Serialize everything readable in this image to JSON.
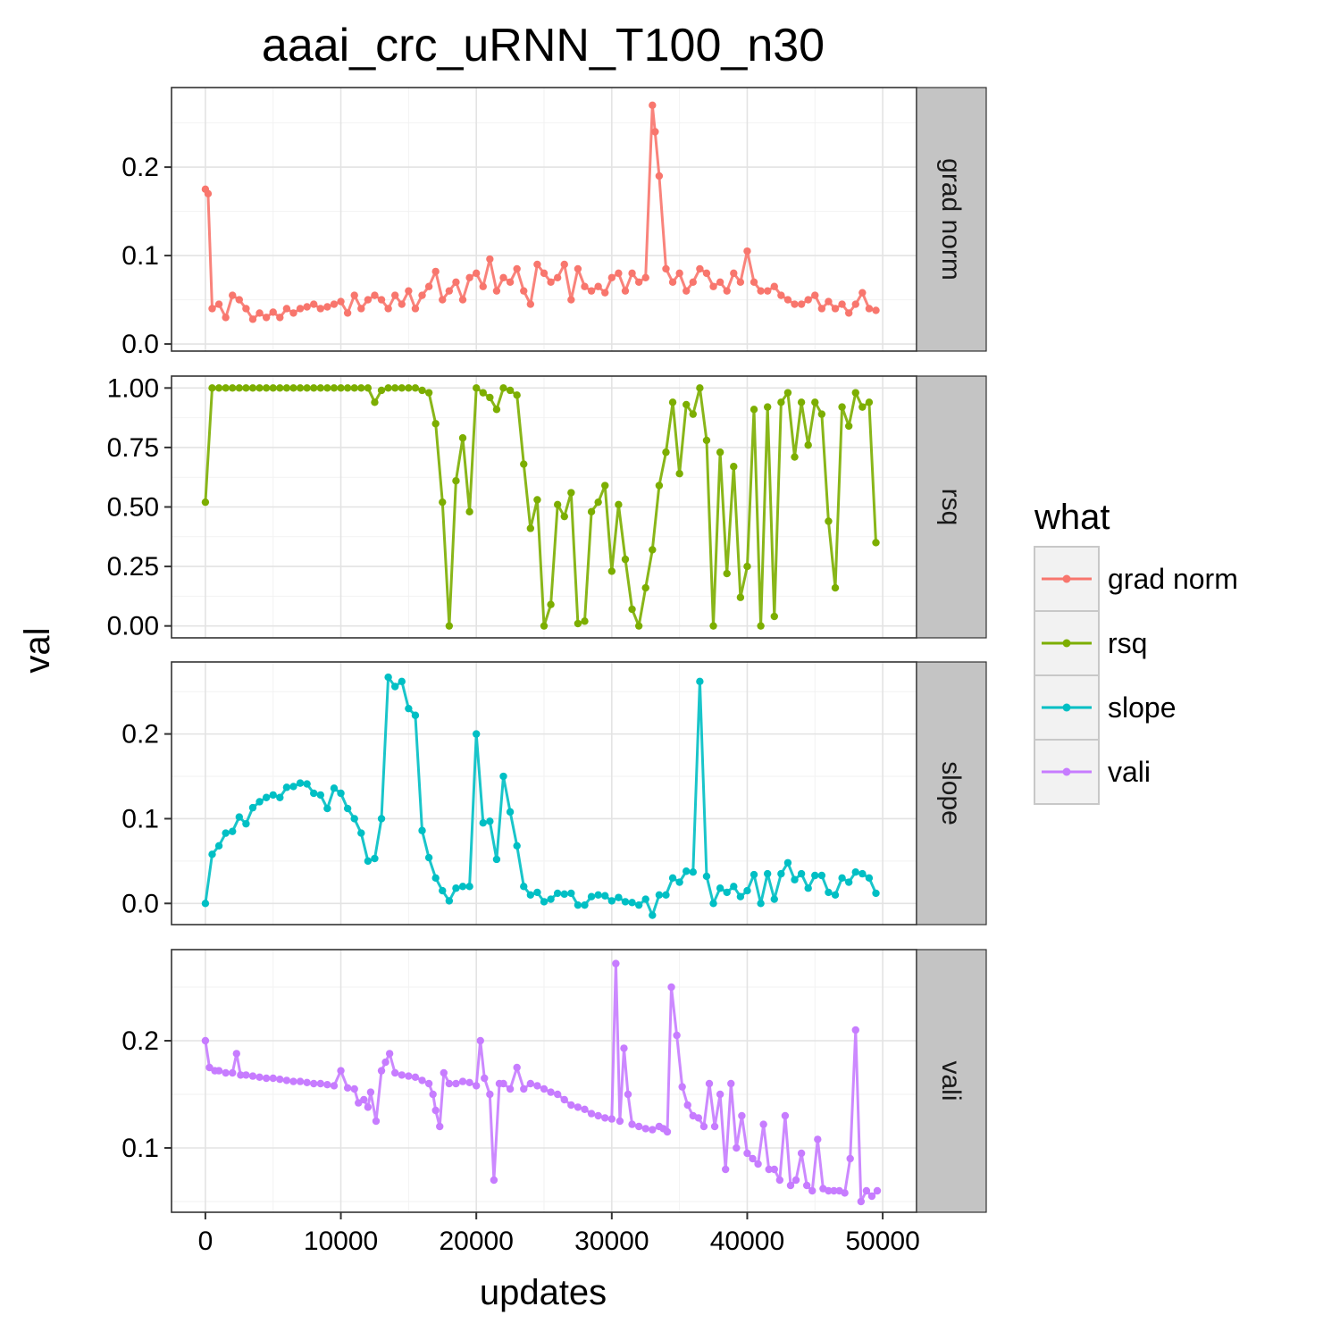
{
  "chart_data": {
    "type": "line",
    "title": "aaai_crc_uRNN_T100_n30",
    "xlabel": "updates",
    "ylabel": "val",
    "xlim": [
      -2500,
      52500
    ],
    "x_ticks": [
      0,
      10000,
      20000,
      30000,
      40000,
      50000
    ],
    "x_tick_labels": [
      "0",
      "10000",
      "20000",
      "30000",
      "40000",
      "50000"
    ],
    "grid": true,
    "facets": "rows",
    "legend": {
      "title": "what",
      "position": "right",
      "entries": [
        "grad norm",
        "rsq",
        "slope",
        "vali"
      ]
    },
    "series": [
      {
        "name": "grad norm",
        "color": "#F8766D",
        "ylim": [
          -0.008,
          0.29
        ],
        "y_ticks": [
          0.0,
          0.1,
          0.2
        ],
        "y_tick_labels": [
          "0.0",
          "0.1",
          "0.2"
        ],
        "x": [
          0,
          200,
          500,
          1000,
          1500,
          2000,
          2500,
          3000,
          3500,
          4000,
          4500,
          5000,
          5500,
          6000,
          6500,
          7000,
          7500,
          8000,
          8500,
          9000,
          9500,
          10000,
          10500,
          11000,
          11500,
          12000,
          12500,
          13000,
          13500,
          14000,
          14500,
          15000,
          15500,
          16000,
          16500,
          17000,
          17500,
          18000,
          18500,
          19000,
          19500,
          20000,
          20500,
          21000,
          21500,
          22000,
          22500,
          23000,
          23500,
          24000,
          24500,
          25000,
          25500,
          26000,
          26500,
          27000,
          27500,
          28000,
          28500,
          29000,
          29500,
          30000,
          30500,
          31000,
          31500,
          32000,
          32500,
          33000,
          33200,
          33500,
          34000,
          34500,
          35000,
          35500,
          36000,
          36500,
          37000,
          37500,
          38000,
          38500,
          39000,
          39500,
          40000,
          40500,
          41000,
          41500,
          42000,
          42500,
          43000,
          43500,
          44000,
          44500,
          45000,
          45500,
          46000,
          46500,
          47000,
          47500,
          48000,
          48500,
          49000,
          49500
        ],
        "values": [
          0.175,
          0.17,
          0.04,
          0.045,
          0.03,
          0.055,
          0.05,
          0.04,
          0.028,
          0.035,
          0.03,
          0.036,
          0.03,
          0.04,
          0.035,
          0.04,
          0.042,
          0.045,
          0.04,
          0.042,
          0.045,
          0.048,
          0.035,
          0.055,
          0.04,
          0.05,
          0.055,
          0.05,
          0.04,
          0.055,
          0.045,
          0.06,
          0.04,
          0.055,
          0.065,
          0.082,
          0.05,
          0.06,
          0.07,
          0.05,
          0.075,
          0.08,
          0.065,
          0.096,
          0.06,
          0.075,
          0.07,
          0.085,
          0.06,
          0.045,
          0.09,
          0.08,
          0.07,
          0.075,
          0.09,
          0.05,
          0.085,
          0.065,
          0.06,
          0.065,
          0.058,
          0.075,
          0.08,
          0.06,
          0.08,
          0.07,
          0.075,
          0.27,
          0.24,
          0.19,
          0.085,
          0.07,
          0.08,
          0.06,
          0.07,
          0.085,
          0.08,
          0.065,
          0.07,
          0.06,
          0.08,
          0.07,
          0.105,
          0.07,
          0.06,
          0.06,
          0.065,
          0.055,
          0.05,
          0.045,
          0.045,
          0.05,
          0.055,
          0.04,
          0.048,
          0.04,
          0.045,
          0.035,
          0.045,
          0.058,
          0.04,
          0.038
        ]
      },
      {
        "name": "rsq",
        "color": "#7CAE00",
        "ylim": [
          -0.05,
          1.05
        ],
        "y_ticks": [
          0.0,
          0.25,
          0.5,
          0.75,
          1.0
        ],
        "y_tick_labels": [
          "0.00",
          "0.25",
          "0.50",
          "0.75",
          "1.00"
        ],
        "x": [
          0,
          500,
          1000,
          1500,
          2000,
          2500,
          3000,
          3500,
          4000,
          4500,
          5000,
          5500,
          6000,
          6500,
          7000,
          7500,
          8000,
          8500,
          9000,
          9500,
          10000,
          10500,
          11000,
          11500,
          12000,
          12500,
          13000,
          13500,
          14000,
          14500,
          15000,
          15500,
          16000,
          16500,
          17000,
          17500,
          18000,
          18500,
          19000,
          19500,
          20000,
          20500,
          21000,
          21500,
          22000,
          22500,
          23000,
          23500,
          24000,
          24500,
          25000,
          25500,
          26000,
          26500,
          27000,
          27500,
          28000,
          28500,
          29000,
          29500,
          30000,
          30500,
          31000,
          31500,
          32000,
          32500,
          33000,
          33500,
          34000,
          34500,
          35000,
          35500,
          36000,
          36500,
          37000,
          37500,
          38000,
          38500,
          39000,
          39500,
          40000,
          40500,
          41000,
          41500,
          42000,
          42500,
          43000,
          43500,
          44000,
          44500,
          45000,
          45500,
          46000,
          46500,
          47000,
          47500,
          48000,
          48500,
          49000,
          49500
        ],
        "values": [
          0.52,
          1.0,
          1.0,
          1.0,
          1.0,
          1.0,
          1.0,
          1.0,
          1.0,
          1.0,
          1.0,
          1.0,
          1.0,
          1.0,
          1.0,
          1.0,
          1.0,
          1.0,
          1.0,
          1.0,
          1.0,
          1.0,
          1.0,
          1.0,
          1.0,
          0.94,
          0.99,
          1.0,
          1.0,
          1.0,
          1.0,
          1.0,
          0.99,
          0.98,
          0.85,
          0.52,
          0.0,
          0.61,
          0.79,
          0.48,
          1.0,
          0.98,
          0.96,
          0.91,
          1.0,
          0.99,
          0.97,
          0.68,
          0.41,
          0.53,
          0.0,
          0.09,
          0.51,
          0.46,
          0.56,
          0.01,
          0.02,
          0.48,
          0.52,
          0.59,
          0.23,
          0.51,
          0.28,
          0.07,
          0.0,
          0.16,
          0.32,
          0.59,
          0.73,
          0.94,
          0.64,
          0.93,
          0.89,
          1.0,
          0.78,
          0.0,
          0.73,
          0.22,
          0.67,
          0.12,
          0.25,
          0.91,
          0.0,
          0.92,
          0.04,
          0.94,
          0.98,
          0.71,
          0.94,
          0.76,
          0.94,
          0.89,
          0.44,
          0.16,
          0.92,
          0.84,
          0.98,
          0.92,
          0.94,
          0.35
        ]
      },
      {
        "name": "slope",
        "color": "#00BFC4",
        "ylim": [
          -0.025,
          0.285
        ],
        "y_ticks": [
          0.0,
          0.1,
          0.2
        ],
        "y_tick_labels": [
          "0.0",
          "0.1",
          "0.2"
        ],
        "x": [
          0,
          500,
          1000,
          1500,
          2000,
          2500,
          3000,
          3500,
          4000,
          4500,
          5000,
          5500,
          6000,
          6500,
          7000,
          7500,
          8000,
          8500,
          9000,
          9500,
          10000,
          10500,
          11000,
          11500,
          12000,
          12500,
          13000,
          13500,
          14000,
          14500,
          15000,
          15500,
          16000,
          16500,
          17000,
          17500,
          18000,
          18500,
          19000,
          19500,
          20000,
          20500,
          21000,
          21500,
          22000,
          22500,
          23000,
          23500,
          24000,
          24500,
          25000,
          25500,
          26000,
          26500,
          27000,
          27500,
          28000,
          28500,
          29000,
          29500,
          30000,
          30500,
          31000,
          31500,
          32000,
          32500,
          33000,
          33500,
          34000,
          34500,
          35000,
          35500,
          36000,
          36500,
          37000,
          37500,
          38000,
          38500,
          39000,
          39500,
          40000,
          40500,
          41000,
          41500,
          42000,
          42500,
          43000,
          43500,
          44000,
          44500,
          45000,
          45500,
          46000,
          46500,
          47000,
          47500,
          48000,
          48500,
          49000,
          49500
        ],
        "values": [
          0.0,
          0.058,
          0.068,
          0.083,
          0.085,
          0.102,
          0.094,
          0.113,
          0.12,
          0.125,
          0.128,
          0.125,
          0.137,
          0.138,
          0.142,
          0.141,
          0.13,
          0.128,
          0.112,
          0.136,
          0.13,
          0.112,
          0.1,
          0.083,
          0.05,
          0.053,
          0.1,
          0.267,
          0.256,
          0.262,
          0.23,
          0.222,
          0.086,
          0.054,
          0.03,
          0.015,
          0.003,
          0.018,
          0.02,
          0.02,
          0.2,
          0.095,
          0.097,
          0.052,
          0.15,
          0.108,
          0.068,
          0.02,
          0.01,
          0.013,
          0.002,
          0.005,
          0.012,
          0.011,
          0.012,
          -0.002,
          -0.002,
          0.008,
          0.01,
          0.009,
          0.003,
          0.007,
          0.002,
          0.001,
          -0.002,
          0.005,
          -0.014,
          0.01,
          0.01,
          0.03,
          0.025,
          0.038,
          0.037,
          0.262,
          0.032,
          0.0,
          0.018,
          0.013,
          0.02,
          0.008,
          0.015,
          0.034,
          0.0,
          0.035,
          0.005,
          0.035,
          0.048,
          0.028,
          0.035,
          0.018,
          0.033,
          0.033,
          0.013,
          0.01,
          0.03,
          0.025,
          0.037,
          0.035,
          0.03,
          0.012
        ]
      },
      {
        "name": "vali",
        "color": "#C77CFF",
        "ylim": [
          0.04,
          0.285
        ],
        "y_ticks": [
          0.1,
          0.2
        ],
        "y_tick_labels": [
          "0.1",
          "0.2"
        ],
        "x": [
          0,
          300,
          700,
          1000,
          1500,
          2000,
          2300,
          2600,
          3000,
          3500,
          4000,
          4500,
          5000,
          5500,
          6000,
          6500,
          7000,
          7500,
          8000,
          8500,
          9000,
          9500,
          10000,
          10500,
          11000,
          11300,
          11700,
          12000,
          12200,
          12600,
          13000,
          13300,
          13600,
          14000,
          14500,
          15000,
          15500,
          16000,
          16500,
          16800,
          17000,
          17300,
          17600,
          18000,
          18500,
          19000,
          19500,
          20000,
          20300,
          20600,
          21000,
          21300,
          21700,
          22000,
          22500,
          23000,
          23500,
          24000,
          24500,
          25000,
          25500,
          26000,
          26500,
          27000,
          27500,
          28000,
          28500,
          29000,
          29500,
          30000,
          30300,
          30600,
          30900,
          31200,
          31500,
          32000,
          32500,
          33000,
          33500,
          33800,
          34100,
          34400,
          34800,
          35200,
          35600,
          36000,
          36400,
          36800,
          37200,
          37600,
          38000,
          38400,
          38800,
          39200,
          39600,
          40000,
          40400,
          40800,
          41200,
          41600,
          42000,
          42400,
          42800,
          43200,
          43600,
          44000,
          44400,
          44800,
          45200,
          45600,
          46000,
          46400,
          46800,
          47200,
          47600,
          48000,
          48400,
          48800,
          49200,
          49600
        ],
        "values": [
          0.2,
          0.175,
          0.172,
          0.172,
          0.17,
          0.17,
          0.188,
          0.168,
          0.168,
          0.167,
          0.166,
          0.165,
          0.165,
          0.164,
          0.163,
          0.162,
          0.162,
          0.161,
          0.16,
          0.16,
          0.159,
          0.158,
          0.172,
          0.156,
          0.155,
          0.142,
          0.145,
          0.138,
          0.152,
          0.125,
          0.172,
          0.18,
          0.188,
          0.17,
          0.168,
          0.167,
          0.166,
          0.163,
          0.16,
          0.15,
          0.135,
          0.12,
          0.17,
          0.16,
          0.16,
          0.162,
          0.161,
          0.158,
          0.2,
          0.165,
          0.15,
          0.07,
          0.16,
          0.16,
          0.155,
          0.175,
          0.155,
          0.16,
          0.158,
          0.155,
          0.152,
          0.15,
          0.145,
          0.14,
          0.138,
          0.136,
          0.132,
          0.13,
          0.128,
          0.127,
          0.272,
          0.125,
          0.193,
          0.15,
          0.122,
          0.12,
          0.118,
          0.117,
          0.12,
          0.118,
          0.115,
          0.25,
          0.205,
          0.157,
          0.14,
          0.13,
          0.128,
          0.12,
          0.16,
          0.12,
          0.15,
          0.08,
          0.16,
          0.1,
          0.13,
          0.095,
          0.09,
          0.085,
          0.122,
          0.08,
          0.08,
          0.07,
          0.13,
          0.065,
          0.07,
          0.095,
          0.065,
          0.06,
          0.108,
          0.062,
          0.06,
          0.06,
          0.06,
          0.058,
          0.09,
          0.21,
          0.05,
          0.06,
          0.055,
          0.06
        ]
      }
    ]
  }
}
